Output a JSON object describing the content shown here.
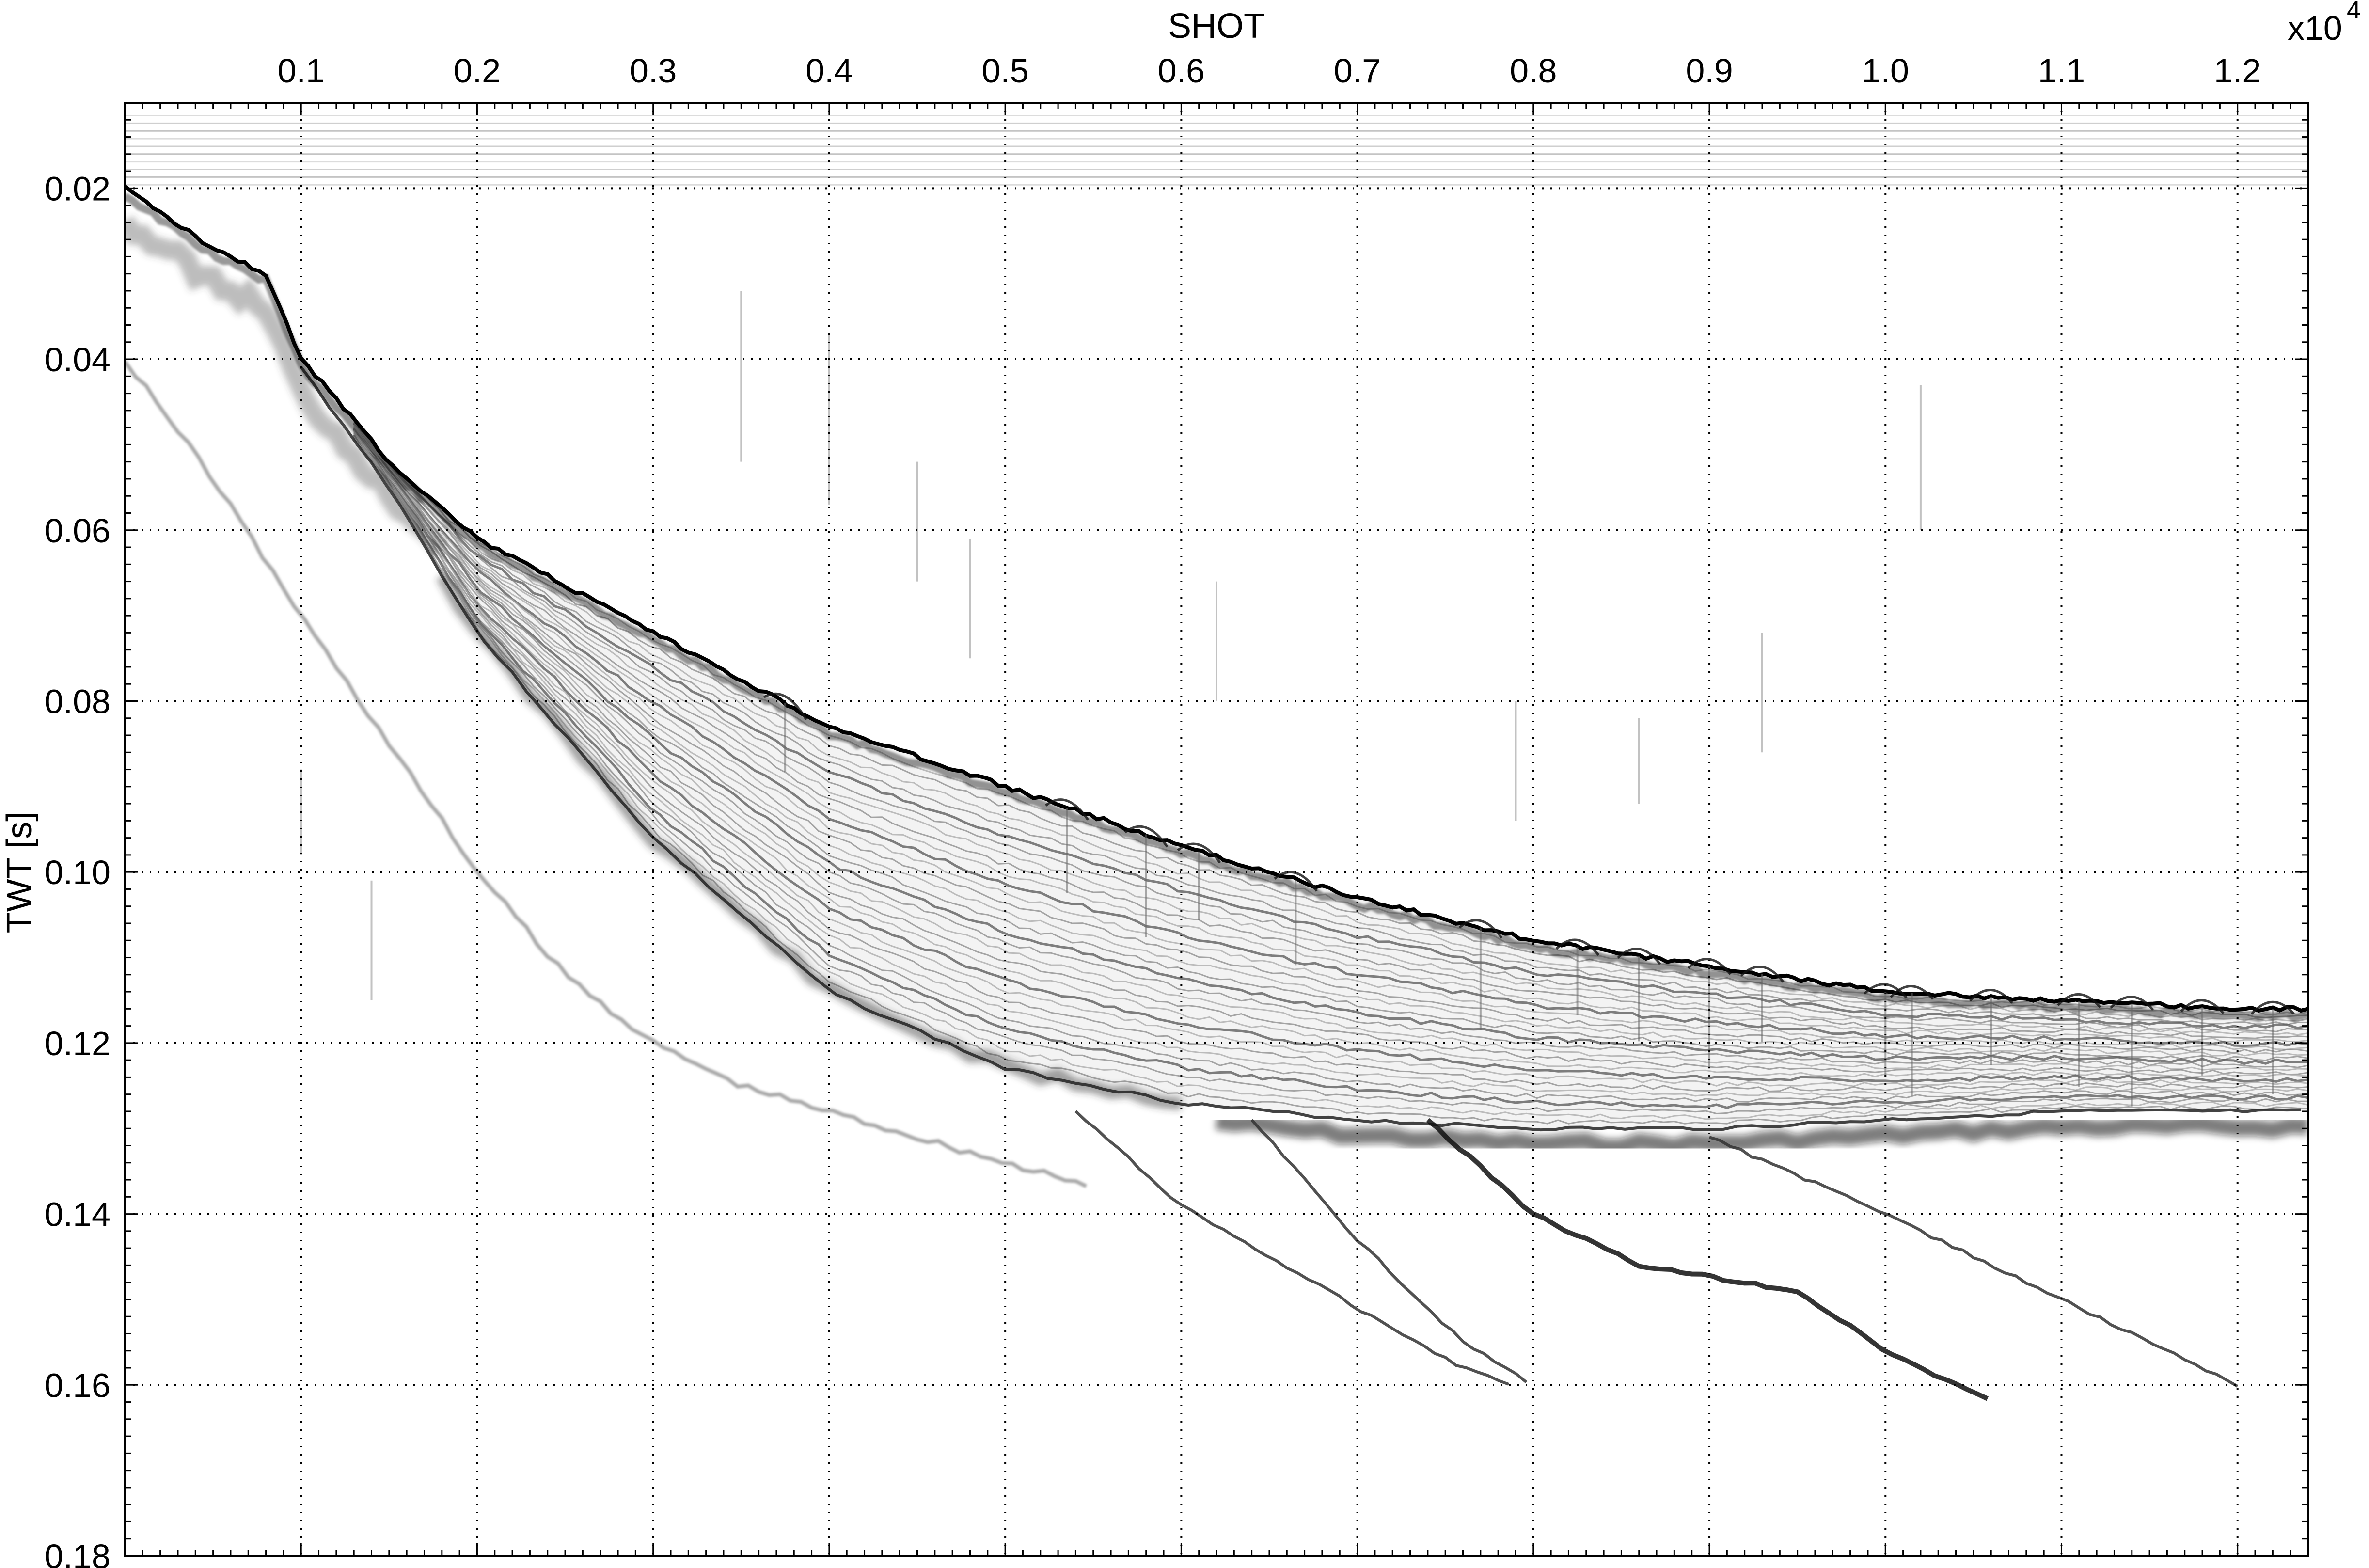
{
  "chart_data": {
    "type": "heatmap",
    "subtype": "seismic-section",
    "xlabel": "SHOT",
    "ylabel": "TWT [s]",
    "x_multiplier_label": "x10",
    "x_multiplier_exponent": "4",
    "x_tick_labels": [
      "0.1",
      "0.2",
      "0.3",
      "0.4",
      "0.5",
      "0.6",
      "0.7",
      "0.8",
      "0.9",
      "1.0",
      "1.1",
      "1.2"
    ],
    "x_ticks": [
      0.1,
      0.2,
      0.3,
      0.4,
      0.5,
      0.6,
      0.7,
      0.8,
      0.9,
      1.0,
      1.1,
      1.2
    ],
    "y_tick_labels": [
      "0.02",
      "0.04",
      "0.06",
      "0.08",
      "0.10",
      "0.12",
      "0.14",
      "0.16",
      "0.18"
    ],
    "y_ticks": [
      0.02,
      0.04,
      0.06,
      0.08,
      0.1,
      0.12,
      0.14,
      0.16,
      0.18
    ],
    "xlim": [
      0.0,
      1.24
    ],
    "ylim": [
      0.01,
      0.18
    ],
    "y_inverted": true,
    "grid": true,
    "grid_style": "dotted",
    "colormap": "grayscale (white = low amplitude, black = high amplitude)",
    "seafloor_reflector": {
      "x": [
        0.0,
        0.05,
        0.08,
        0.1,
        0.13,
        0.15,
        0.2,
        0.3,
        0.4,
        0.5,
        0.6,
        0.7,
        0.8,
        0.9,
        1.0,
        1.1,
        1.2,
        1.24
      ],
      "y": [
        0.02,
        0.027,
        0.03,
        0.04,
        0.047,
        0.052,
        0.061,
        0.072,
        0.083,
        0.09,
        0.097,
        0.103,
        0.108,
        0.111,
        0.114,
        0.115,
        0.116,
        0.116
      ]
    },
    "base_sediment_reflector": {
      "x": [
        0.1,
        0.15,
        0.2,
        0.3,
        0.4,
        0.5,
        0.6,
        0.7,
        0.8,
        0.9,
        1.0,
        1.1,
        1.24
      ],
      "y": [
        0.041,
        0.055,
        0.072,
        0.096,
        0.114,
        0.123,
        0.127,
        0.129,
        0.13,
        0.13,
        0.129,
        0.128,
        0.128
      ]
    },
    "dipping_reflectors": [
      {
        "x": [
          0.54,
          0.6,
          0.7,
          0.76,
          0.79
        ],
        "y": [
          0.128,
          0.139,
          0.151,
          0.158,
          0.16
        ]
      },
      {
        "x": [
          0.64,
          0.7,
          0.76,
          0.8
        ],
        "y": [
          0.129,
          0.143,
          0.155,
          0.16
        ]
      },
      {
        "x": [
          0.74,
          0.8,
          0.86,
          0.95,
          1.0,
          1.06
        ],
        "y": [
          0.129,
          0.14,
          0.146,
          0.149,
          0.156,
          0.162
        ]
      },
      {
        "x": [
          0.9,
          1.0,
          1.1,
          1.2
        ],
        "y": [
          0.131,
          0.14,
          0.15,
          0.16
        ]
      }
    ],
    "multiple_reflector": {
      "x": [
        0.0,
        0.05,
        0.1,
        0.15,
        0.2,
        0.25,
        0.3,
        0.35,
        0.4,
        0.45,
        0.5,
        0.55
      ],
      "y": [
        0.04,
        0.054,
        0.07,
        0.085,
        0.1,
        0.112,
        0.12,
        0.125,
        0.128,
        0.131,
        0.134,
        0.137
      ]
    }
  }
}
